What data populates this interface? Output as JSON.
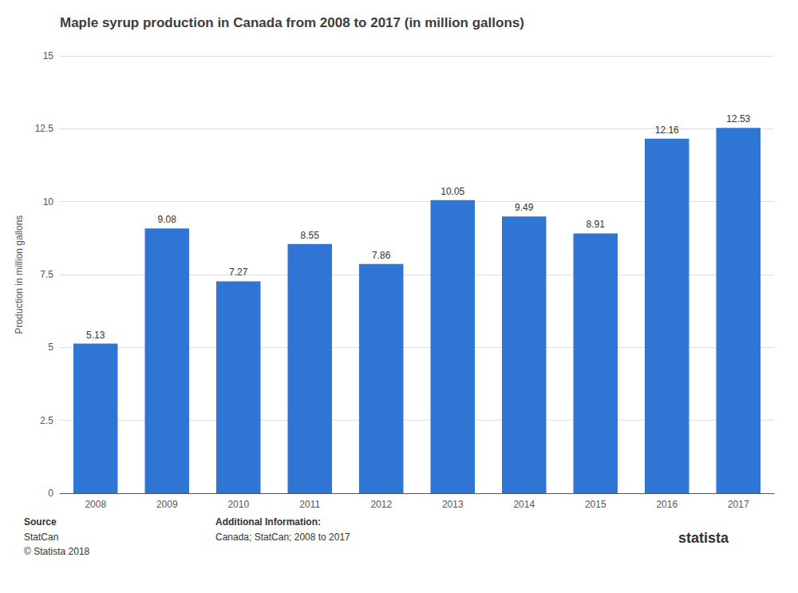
{
  "chart_data": {
    "type": "bar",
    "title": "Maple syrup production in Canada from 2008 to 2017 (in million gallons)",
    "categories": [
      "2008",
      "2009",
      "2010",
      "2011",
      "2012",
      "2013",
      "2014",
      "2015",
      "2016",
      "2017"
    ],
    "values": [
      5.13,
      9.08,
      7.27,
      8.55,
      7.86,
      10.05,
      9.49,
      8.91,
      12.16,
      12.53
    ],
    "color": "#2e75d4",
    "ylabel": "Production in million gallons",
    "ylim": [
      0,
      15
    ],
    "yticks": [
      0,
      2.5,
      5,
      7.5,
      10,
      12.5,
      15
    ],
    "grid": true,
    "data_labels": true,
    "annotations": [
      "Source",
      "StatCan",
      "© Statista 2018",
      "Additional Information:",
      "Canada; StatCan; 2008 to 2017",
      "statista"
    ]
  }
}
